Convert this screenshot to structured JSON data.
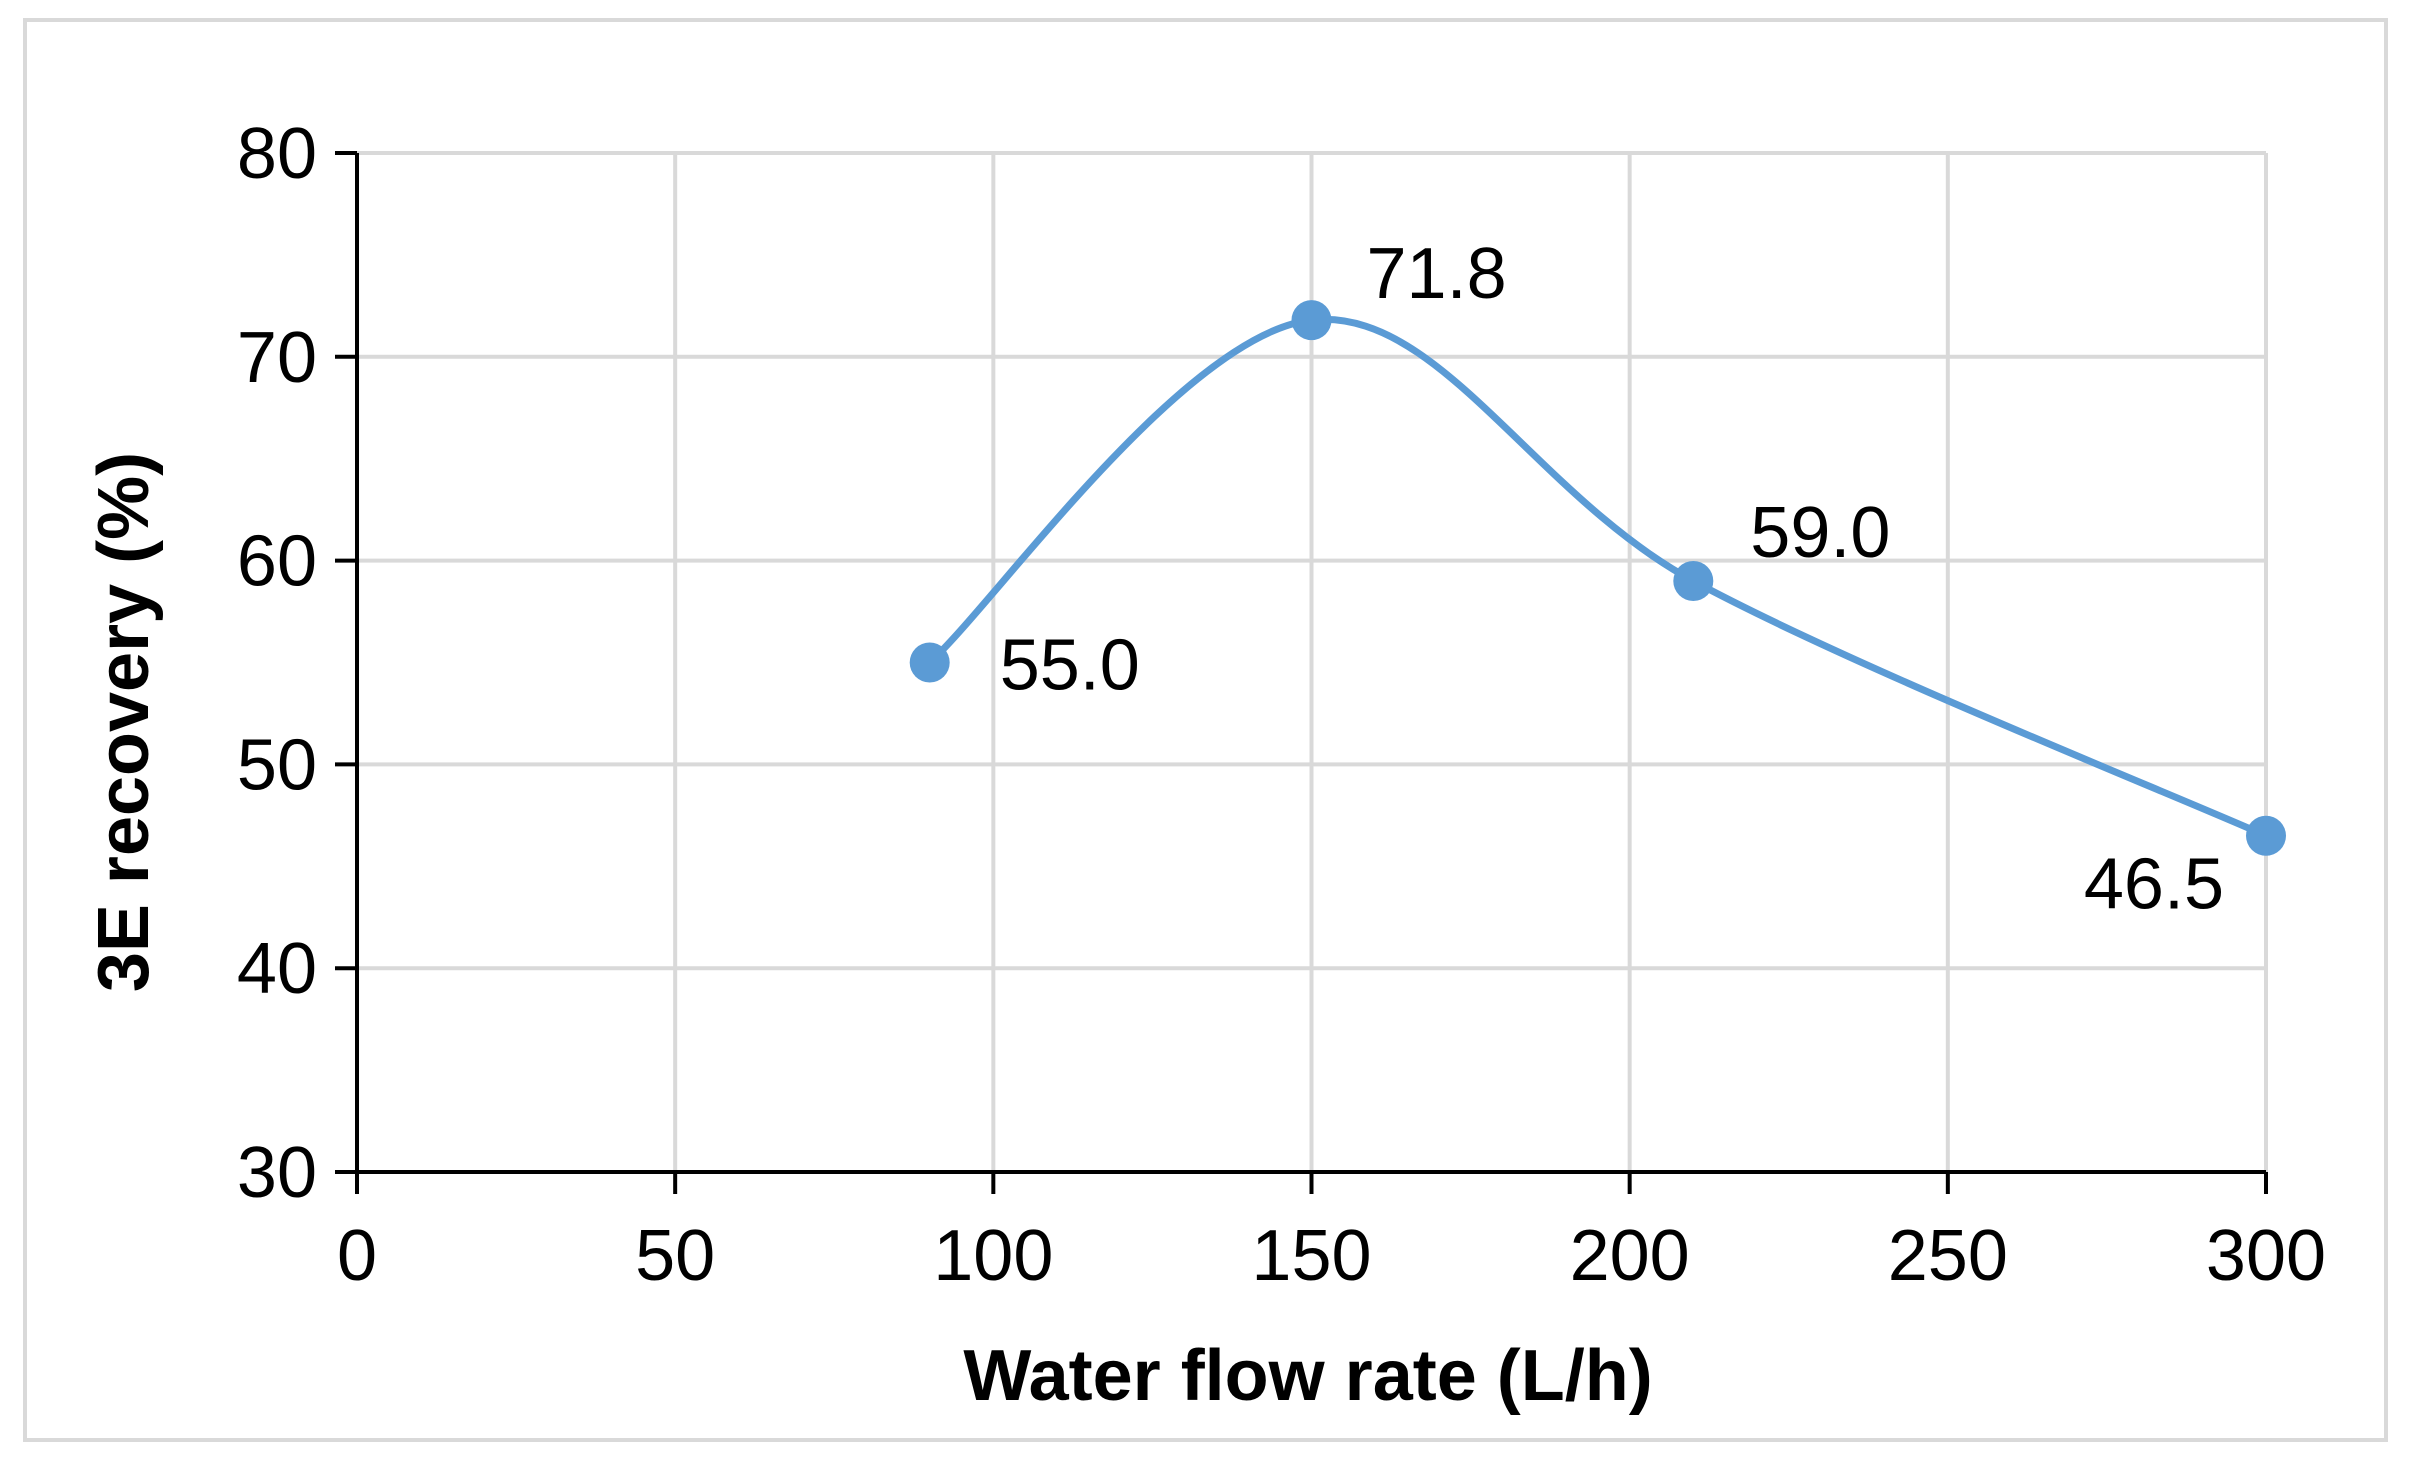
{
  "chart_data": {
    "type": "scatter",
    "subtype": "smoothed-line-with-markers",
    "title": "",
    "xlabel": "Water flow rate (L/h)",
    "ylabel": "3E recovery (%)",
    "xlim": [
      0,
      300
    ],
    "ylim": [
      30,
      80
    ],
    "xticks": [
      0,
      50,
      100,
      150,
      200,
      250,
      300
    ],
    "yticks": [
      30,
      40,
      50,
      60,
      70,
      80
    ],
    "xtick_labels": [
      "0",
      "50",
      "100",
      "150",
      "200",
      "250",
      "300"
    ],
    "ytick_labels": [
      "30",
      "40",
      "50",
      "60",
      "70",
      "80"
    ],
    "grid": true,
    "legend": "none",
    "series": [
      {
        "name": "3E recovery",
        "color": "#5b9bd5",
        "x": [
          90,
          150,
          210,
          300
        ],
        "y": [
          55.0,
          71.8,
          59.0,
          46.5
        ],
        "labels": [
          "55.0",
          "71.8",
          "59.0",
          "46.5"
        ]
      }
    ]
  }
}
